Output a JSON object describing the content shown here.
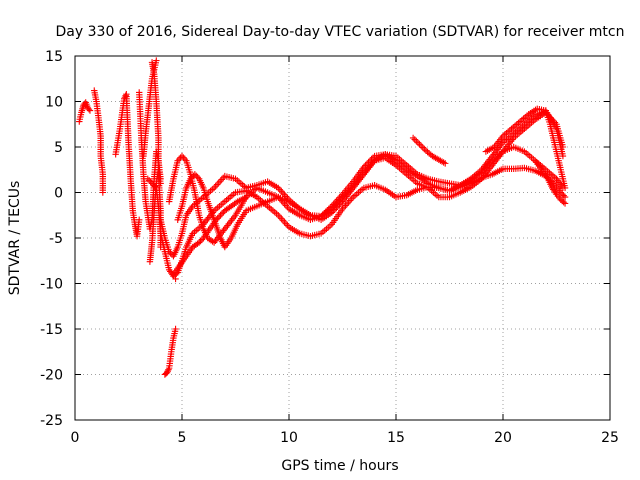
{
  "chart_data": {
    "type": "scatter",
    "title": "Day 330 of 2016, Sidereal Day-to-day VTEC variation (SDTVAR) for receiver mtcn",
    "xlabel": "GPS time / hours",
    "ylabel": "SDTVAR / TECUs",
    "xlim": [
      0,
      25
    ],
    "ylim": [
      -25,
      15
    ],
    "xticks": [
      "0",
      "5",
      "10",
      "15",
      "20",
      "25"
    ],
    "yticks": [
      "15",
      "10",
      "5",
      "0",
      "-5",
      "-10",
      "-15",
      "-20",
      "-25"
    ],
    "grid": true,
    "marker": "+",
    "color": "#ff0000",
    "series": [
      {
        "name": "s1",
        "x": [
          0.2,
          0.3,
          0.4,
          0.5,
          0.6,
          0.7
        ],
        "y": [
          7.8,
          8.8,
          9.6,
          9.9,
          9.3,
          9.0
        ]
      },
      {
        "name": "s2",
        "x": [
          0.9,
          1.0,
          1.1,
          1.2,
          1.2,
          1.3,
          1.3
        ],
        "y": [
          11.2,
          10.0,
          8.2,
          6.2,
          4.0,
          2.0,
          0.0
        ]
      },
      {
        "name": "s3",
        "x": [
          1.9,
          2.1,
          2.3,
          2.4,
          2.5,
          2.6,
          2.7,
          2.8,
          2.9,
          3.0
        ],
        "y": [
          4.2,
          7.0,
          10.3,
          10.8,
          5.5,
          1.5,
          -2.0,
          -3.5,
          -4.8,
          -3.0
        ]
      },
      {
        "name": "s4",
        "x": [
          3.0,
          3.1,
          3.2,
          3.3,
          3.4,
          3.5,
          3.6,
          3.7,
          3.8,
          3.9,
          4.0
        ],
        "y": [
          11.0,
          6.0,
          2.0,
          -1.0,
          -2.5,
          -4.0,
          -3.0,
          1.5,
          4.5,
          3.5,
          1.5
        ]
      },
      {
        "name": "s5",
        "x": [
          3.2,
          3.3,
          3.4,
          3.5,
          3.6,
          3.7,
          3.8
        ],
        "y": [
          4.0,
          6.5,
          8.5,
          10.5,
          12.5,
          13.5,
          14.5
        ]
      },
      {
        "name": "s6",
        "x": [
          3.6,
          3.7,
          3.8,
          3.9,
          3.9,
          4.0,
          4.0
        ],
        "y": [
          14.3,
          13.0,
          10.0,
          6.0,
          2.0,
          -2.0,
          -6.0
        ]
      },
      {
        "name": "s7",
        "x": [
          3.5,
          3.6,
          3.7,
          3.8,
          3.9,
          4.0
        ],
        "y": [
          -7.6,
          -5.5,
          -2.0,
          1.0,
          2.5,
          1.0
        ]
      },
      {
        "name": "s8",
        "x": [
          3.4,
          3.6,
          3.8,
          3.9,
          4.0,
          4.2,
          4.4,
          4.6,
          4.8,
          5.0,
          5.2,
          5.5,
          6.0,
          6.5,
          7.0,
          7.5,
          8.0,
          8.5,
          9.0,
          9.5,
          10.0,
          10.5,
          11.0,
          11.5,
          12.0,
          12.5,
          13.0,
          13.5,
          14.0,
          14.5,
          15.0,
          15.5,
          16.0,
          16.5,
          17.0,
          17.5,
          18.0,
          18.5,
          19.0,
          19.5,
          20.0,
          20.5,
          21.0,
          21.5,
          22.0,
          22.3,
          22.5,
          22.7,
          22.9
        ],
        "y": [
          1.5,
          1.0,
          0.5,
          -1.5,
          -4.5,
          -6.5,
          -8.5,
          -9.2,
          -8.8,
          -7.5,
          -6.0,
          -4.5,
          -3.5,
          -2.0,
          -1.0,
          0.0,
          0.2,
          -0.5,
          -1.5,
          -2.5,
          -3.8,
          -4.5,
          -4.8,
          -4.5,
          -3.5,
          -1.8,
          -0.5,
          0.5,
          0.8,
          0.3,
          -0.5,
          -0.3,
          0.3,
          0.6,
          0.5,
          0.2,
          0.6,
          1.0,
          1.6,
          2.0,
          2.6,
          2.6,
          2.7,
          2.4,
          1.8,
          1.2,
          0.6,
          0.0,
          -0.5
        ]
      },
      {
        "name": "s9",
        "x": [
          4.0,
          4.2,
          4.4,
          4.6,
          4.8,
          5.0,
          5.2,
          5.5,
          6.0,
          6.5,
          7.0,
          7.5,
          8.0,
          8.5,
          9.0,
          9.5,
          10.0,
          10.5,
          11.0,
          11.5,
          12.0,
          12.5,
          13.0,
          13.5,
          14.0,
          14.5,
          15.0,
          15.5,
          16.0,
          16.5,
          17.0,
          17.5,
          18.0,
          18.5,
          19.0,
          19.5,
          20.0,
          20.5,
          21.0,
          21.5,
          22.0,
          22.5,
          22.8
        ],
        "y": [
          -3.0,
          -5.0,
          -6.5,
          -7.0,
          -6.0,
          -4.5,
          -2.5,
          -1.5,
          -0.5,
          0.5,
          1.8,
          1.5,
          0.5,
          0.8,
          1.2,
          0.5,
          -0.8,
          -1.8,
          -2.5,
          -2.6,
          -1.8,
          -0.5,
          0.8,
          2.2,
          3.5,
          4.2,
          4.0,
          3.0,
          2.0,
          1.5,
          1.2,
          1.0,
          0.8,
          1.4,
          2.2,
          3.5,
          4.5,
          5.0,
          4.5,
          3.5,
          2.5,
          1.5,
          0.5
        ]
      },
      {
        "name": "s10",
        "x": [
          4.4,
          4.6,
          4.8,
          5.0,
          5.2,
          5.4,
          5.6,
          5.8,
          6.0,
          6.2,
          6.5,
          7.0,
          7.5,
          8.0,
          8.5,
          9.0,
          9.5,
          10.0,
          10.5,
          11.0,
          11.5,
          12.0,
          12.5,
          13.0,
          13.5,
          14.0,
          14.5,
          15.0,
          15.5,
          16.0,
          16.5,
          17.0,
          17.5,
          18.0,
          18.5,
          19.0,
          19.5,
          20.0,
          20.5,
          21.0,
          21.5,
          22.0,
          22.5,
          22.8
        ],
        "y": [
          -1.0,
          1.5,
          3.5,
          4.0,
          3.5,
          2.0,
          0.0,
          -2.5,
          -4.0,
          -5.0,
          -5.5,
          -4.0,
          -2.5,
          -0.5,
          0.5,
          0.0,
          -0.5,
          -1.8,
          -2.5,
          -3.0,
          -2.6,
          -1.5,
          -0.2,
          1.2,
          2.8,
          4.0,
          4.2,
          3.5,
          2.5,
          1.8,
          1.0,
          0.5,
          0.2,
          0.8,
          1.5,
          2.5,
          4.0,
          5.5,
          6.5,
          7.5,
          8.5,
          9.0,
          7.0,
          4.0
        ]
      },
      {
        "name": "s11",
        "x": [
          4.8,
          5.0,
          5.2,
          5.4,
          5.6,
          5.8,
          6.0,
          6.2,
          6.5,
          6.8,
          7.0,
          7.3,
          7.6,
          8.0,
          8.5,
          9.0,
          9.5,
          10.0,
          10.5,
          11.0,
          11.5,
          12.0,
          12.5,
          13.0,
          13.5,
          14.0,
          14.5,
          15.0,
          15.5,
          16.0,
          16.5,
          17.0,
          17.5,
          18.0,
          18.5,
          19.0,
          19.5,
          20.0,
          20.5,
          21.0,
          21.5,
          22.0,
          22.5,
          22.8
        ],
        "y": [
          -3.0,
          -1.5,
          0.5,
          1.5,
          2.0,
          1.5,
          0.5,
          -1.0,
          -3.0,
          -5.0,
          -6.0,
          -5.0,
          -3.5,
          -2.0,
          -1.5,
          -1.0,
          -0.5,
          -1.0,
          -1.8,
          -2.5,
          -3.0,
          -2.2,
          -1.0,
          0.5,
          2.0,
          3.5,
          3.8,
          3.0,
          2.0,
          1.0,
          0.5,
          -0.5,
          -0.5,
          0.0,
          0.6,
          1.5,
          3.0,
          4.5,
          6.0,
          7.0,
          8.0,
          8.8,
          7.5,
          5.0
        ]
      },
      {
        "name": "s12",
        "x": [
          4.6,
          4.9,
          5.2,
          5.5,
          5.8,
          6.0,
          6.3,
          6.6,
          7.0,
          7.3,
          7.6,
          8.0
        ],
        "y": [
          -9.0,
          -8.0,
          -7.0,
          -6.0,
          -5.5,
          -5.0,
          -4.0,
          -3.0,
          -2.0,
          -1.5,
          -1.0,
          -0.5
        ]
      },
      {
        "name": "s13",
        "x": [
          4.2,
          4.3,
          4.4,
          4.5,
          4.6,
          4.7
        ],
        "y": [
          -20.0,
          -19.8,
          -19.3,
          -17.5,
          -16.0,
          -15.0
        ]
      },
      {
        "name": "s14",
        "x": [
          4.7
        ],
        "y": [
          -9.5
        ]
      },
      {
        "name": "s15",
        "x": [
          15.8,
          16.1,
          16.4,
          16.7,
          17.0,
          17.3
        ],
        "y": [
          6.0,
          5.3,
          4.6,
          4.0,
          3.6,
          3.2
        ]
      },
      {
        "name": "s16",
        "x": [
          19.2,
          19.6,
          20.0,
          20.4,
          20.8,
          21.2,
          21.6,
          22.0,
          22.2,
          22.4,
          22.6,
          22.8,
          22.9
        ],
        "y": [
          4.5,
          5.0,
          6.2,
          7.0,
          7.8,
          8.6,
          9.2,
          9.0,
          7.5,
          5.5,
          3.5,
          1.5,
          0.5
        ]
      },
      {
        "name": "s17",
        "x": [
          21.5,
          21.8,
          22.1,
          22.3,
          22.5,
          22.7,
          22.9
        ],
        "y": [
          3.5,
          2.5,
          1.5,
          0.5,
          -0.2,
          -0.8,
          -1.2
        ]
      }
    ]
  }
}
